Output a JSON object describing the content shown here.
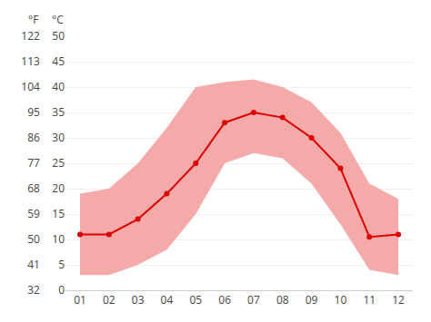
{
  "chart_data": {
    "type": "line",
    "x": [
      1,
      2,
      3,
      4,
      5,
      6,
      7,
      8,
      9,
      10,
      11,
      12
    ],
    "xlim": [
      0.5,
      12.5
    ],
    "xticks": [
      {
        "value": 1,
        "label": "01"
      },
      {
        "value": 2,
        "label": "02"
      },
      {
        "value": 3,
        "label": "03"
      },
      {
        "value": 4,
        "label": "04"
      },
      {
        "value": 5,
        "label": "05"
      },
      {
        "value": 6,
        "label": "06"
      },
      {
        "value": 7,
        "label": "07"
      },
      {
        "value": 8,
        "label": "08"
      },
      {
        "value": 9,
        "label": "09"
      },
      {
        "value": 10,
        "label": "10"
      },
      {
        "value": 11,
        "label": "11"
      },
      {
        "value": 12,
        "label": "12"
      }
    ],
    "series": [
      {
        "type": "band",
        "color": "#f5aaaa",
        "low": [
          3,
          3,
          5,
          8,
          15,
          25,
          27,
          26,
          21,
          13,
          4,
          3
        ],
        "high": [
          19,
          20,
          25,
          32,
          40,
          41,
          41.5,
          40,
          37,
          31,
          21,
          18
        ]
      },
      {
        "type": "line",
        "color": "#dd0000",
        "marker": "circle",
        "values": [
          11,
          11,
          14,
          19,
          25,
          33,
          35,
          34,
          30,
          24,
          10.5,
          11
        ]
      }
    ],
    "ylabel": "°C",
    "ylim": [
      0,
      50
    ],
    "yticks": [
      0,
      5,
      10,
      15,
      20,
      25,
      30,
      35,
      40,
      45,
      50
    ],
    "y2label": "°F",
    "y2lim": [
      32,
      122
    ],
    "y2ticks": [
      32,
      41,
      50,
      59,
      68,
      77,
      86,
      95,
      104,
      113,
      122
    ],
    "grid": true
  }
}
